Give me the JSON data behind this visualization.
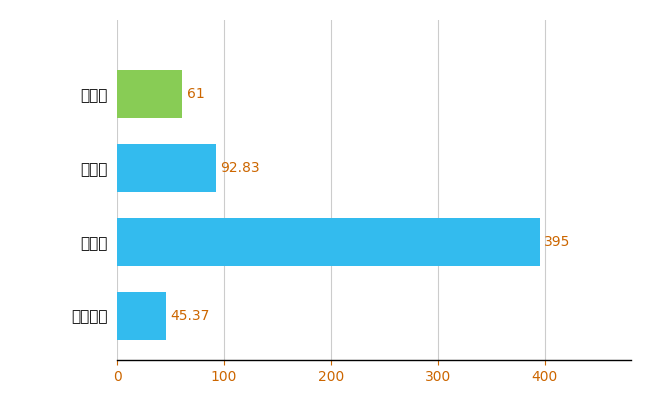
{
  "categories": [
    "全国平均",
    "県最大",
    "県平均",
    "鶴見区"
  ],
  "values": [
    45.37,
    395,
    92.83,
    61
  ],
  "bar_colors": [
    "#33bbee",
    "#33bbee",
    "#33bbee",
    "#88cc55"
  ],
  "value_labels": [
    "45.37",
    "395",
    "92.83",
    "61"
  ],
  "xlim": [
    0,
    480
  ],
  "xticks": [
    0,
    100,
    200,
    300,
    400
  ],
  "background_color": "#ffffff",
  "grid_color": "#cccccc",
  "bar_height": 0.65,
  "label_fontsize": 11,
  "tick_fontsize": 10,
  "value_fontsize": 10
}
